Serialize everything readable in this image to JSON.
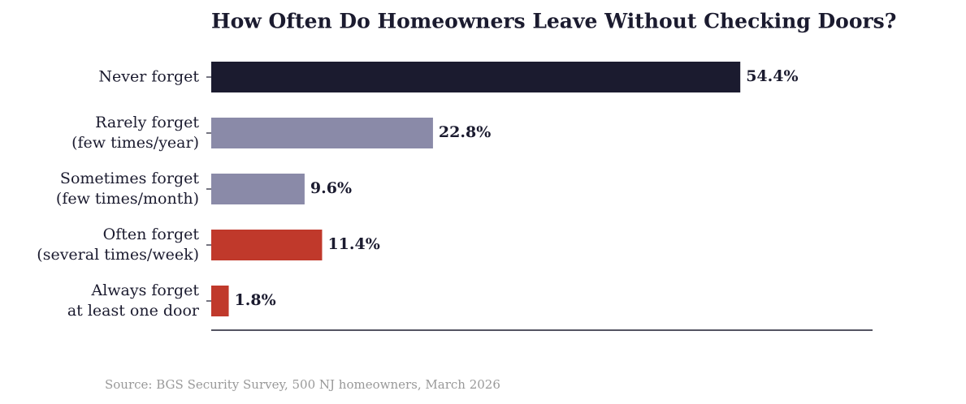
{
  "chart_data": {
    "type": "barh",
    "title": "How Often Do Homeowners Leave Without Checking Doors?",
    "categories": [
      "Never forget",
      "Rarely forget\n(few times/year)",
      "Sometimes forget\n(few times/month)",
      "Often forget\n(several times/week)",
      "Always forget\nat least one door"
    ],
    "values": [
      54.4,
      22.8,
      9.6,
      11.4,
      1.8
    ],
    "value_labels": [
      "54.4%",
      "22.8%",
      "9.6%",
      "11.4%",
      "1.8%"
    ],
    "colors": [
      "#1b1b2f",
      "#8a8aa8",
      "#8a8aa8",
      "#c0392b",
      "#c0392b"
    ],
    "xlim": [
      0,
      68
    ],
    "source": "Source: BGS Security Survey, 500 NJ homeowners, March 2026"
  }
}
